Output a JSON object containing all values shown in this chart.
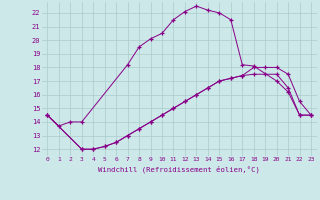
{
  "xlabel": "Windchill (Refroidissement éolien,°C)",
  "background_color": "#cce8e8",
  "line_color": "#880088",
  "grid_color": "#aacccc",
  "xlim": [
    -0.5,
    23.5
  ],
  "ylim": [
    11.5,
    22.8
  ],
  "yticks": [
    12,
    13,
    14,
    15,
    16,
    17,
    18,
    19,
    20,
    21,
    22
  ],
  "xticks": [
    0,
    1,
    2,
    3,
    4,
    5,
    6,
    7,
    8,
    9,
    10,
    11,
    12,
    13,
    14,
    15,
    16,
    17,
    18,
    19,
    20,
    21,
    22,
    23
  ],
  "line1_x": [
    0,
    1,
    2,
    3,
    7,
    8,
    9,
    10,
    11,
    12,
    13,
    14,
    15,
    16,
    17,
    18,
    20,
    21,
    22,
    23
  ],
  "line1_y": [
    14.5,
    13.7,
    14.0,
    14.0,
    18.2,
    19.5,
    20.1,
    20.5,
    21.5,
    22.1,
    22.5,
    22.2,
    22.0,
    21.5,
    18.2,
    18.1,
    17.0,
    16.2,
    14.5,
    14.5
  ],
  "line2_x": [
    0,
    3,
    4,
    5,
    6,
    7,
    8,
    9,
    10,
    11,
    12,
    13,
    14,
    15,
    16,
    17,
    18,
    19,
    20,
    21,
    22,
    23
  ],
  "line2_y": [
    14.5,
    12.0,
    12.0,
    12.2,
    12.5,
    13.0,
    13.5,
    14.0,
    14.5,
    15.0,
    15.5,
    16.0,
    16.5,
    17.0,
    17.2,
    17.4,
    17.5,
    17.5,
    17.5,
    16.5,
    14.5,
    14.5
  ],
  "line3_x": [
    0,
    3,
    4,
    5,
    6,
    7,
    8,
    9,
    10,
    11,
    12,
    13,
    14,
    15,
    16,
    17,
    18,
    19,
    20,
    21,
    22,
    23
  ],
  "line3_y": [
    14.5,
    12.0,
    12.0,
    12.2,
    12.5,
    13.0,
    13.5,
    14.0,
    14.5,
    15.0,
    15.5,
    16.0,
    16.5,
    17.0,
    17.2,
    17.4,
    18.0,
    18.0,
    18.0,
    17.5,
    15.5,
    14.5
  ]
}
